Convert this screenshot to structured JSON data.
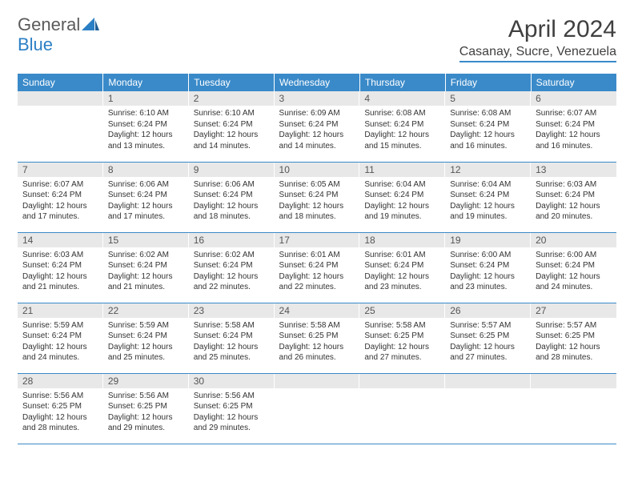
{
  "logo": {
    "word1": "General",
    "word2": "Blue"
  },
  "title": "April 2024",
  "location": "Casanay, Sucre, Venezuela",
  "colors": {
    "header_bg": "#3a8ac9",
    "header_text": "#ffffff",
    "daynum_bg": "#e8e8e8",
    "body_text": "#333333",
    "rule": "#3a8ac9"
  },
  "weekdays": [
    "Sunday",
    "Monday",
    "Tuesday",
    "Wednesday",
    "Thursday",
    "Friday",
    "Saturday"
  ],
  "start_offset": 1,
  "days": [
    {
      "n": 1,
      "sr": "6:10 AM",
      "ss": "6:24 PM",
      "dl": "12 hours and 13 minutes."
    },
    {
      "n": 2,
      "sr": "6:10 AM",
      "ss": "6:24 PM",
      "dl": "12 hours and 14 minutes."
    },
    {
      "n": 3,
      "sr": "6:09 AM",
      "ss": "6:24 PM",
      "dl": "12 hours and 14 minutes."
    },
    {
      "n": 4,
      "sr": "6:08 AM",
      "ss": "6:24 PM",
      "dl": "12 hours and 15 minutes."
    },
    {
      "n": 5,
      "sr": "6:08 AM",
      "ss": "6:24 PM",
      "dl": "12 hours and 16 minutes."
    },
    {
      "n": 6,
      "sr": "6:07 AM",
      "ss": "6:24 PM",
      "dl": "12 hours and 16 minutes."
    },
    {
      "n": 7,
      "sr": "6:07 AM",
      "ss": "6:24 PM",
      "dl": "12 hours and 17 minutes."
    },
    {
      "n": 8,
      "sr": "6:06 AM",
      "ss": "6:24 PM",
      "dl": "12 hours and 17 minutes."
    },
    {
      "n": 9,
      "sr": "6:06 AM",
      "ss": "6:24 PM",
      "dl": "12 hours and 18 minutes."
    },
    {
      "n": 10,
      "sr": "6:05 AM",
      "ss": "6:24 PM",
      "dl": "12 hours and 18 minutes."
    },
    {
      "n": 11,
      "sr": "6:04 AM",
      "ss": "6:24 PM",
      "dl": "12 hours and 19 minutes."
    },
    {
      "n": 12,
      "sr": "6:04 AM",
      "ss": "6:24 PM",
      "dl": "12 hours and 19 minutes."
    },
    {
      "n": 13,
      "sr": "6:03 AM",
      "ss": "6:24 PM",
      "dl": "12 hours and 20 minutes."
    },
    {
      "n": 14,
      "sr": "6:03 AM",
      "ss": "6:24 PM",
      "dl": "12 hours and 21 minutes."
    },
    {
      "n": 15,
      "sr": "6:02 AM",
      "ss": "6:24 PM",
      "dl": "12 hours and 21 minutes."
    },
    {
      "n": 16,
      "sr": "6:02 AM",
      "ss": "6:24 PM",
      "dl": "12 hours and 22 minutes."
    },
    {
      "n": 17,
      "sr": "6:01 AM",
      "ss": "6:24 PM",
      "dl": "12 hours and 22 minutes."
    },
    {
      "n": 18,
      "sr": "6:01 AM",
      "ss": "6:24 PM",
      "dl": "12 hours and 23 minutes."
    },
    {
      "n": 19,
      "sr": "6:00 AM",
      "ss": "6:24 PM",
      "dl": "12 hours and 23 minutes."
    },
    {
      "n": 20,
      "sr": "6:00 AM",
      "ss": "6:24 PM",
      "dl": "12 hours and 24 minutes."
    },
    {
      "n": 21,
      "sr": "5:59 AM",
      "ss": "6:24 PM",
      "dl": "12 hours and 24 minutes."
    },
    {
      "n": 22,
      "sr": "5:59 AM",
      "ss": "6:24 PM",
      "dl": "12 hours and 25 minutes."
    },
    {
      "n": 23,
      "sr": "5:58 AM",
      "ss": "6:24 PM",
      "dl": "12 hours and 25 minutes."
    },
    {
      "n": 24,
      "sr": "5:58 AM",
      "ss": "6:25 PM",
      "dl": "12 hours and 26 minutes."
    },
    {
      "n": 25,
      "sr": "5:58 AM",
      "ss": "6:25 PM",
      "dl": "12 hours and 27 minutes."
    },
    {
      "n": 26,
      "sr": "5:57 AM",
      "ss": "6:25 PM",
      "dl": "12 hours and 27 minutes."
    },
    {
      "n": 27,
      "sr": "5:57 AM",
      "ss": "6:25 PM",
      "dl": "12 hours and 28 minutes."
    },
    {
      "n": 28,
      "sr": "5:56 AM",
      "ss": "6:25 PM",
      "dl": "12 hours and 28 minutes."
    },
    {
      "n": 29,
      "sr": "5:56 AM",
      "ss": "6:25 PM",
      "dl": "12 hours and 29 minutes."
    },
    {
      "n": 30,
      "sr": "5:56 AM",
      "ss": "6:25 PM",
      "dl": "12 hours and 29 minutes."
    }
  ],
  "labels": {
    "sunrise": "Sunrise: ",
    "sunset": "Sunset: ",
    "daylight": "Daylight: "
  }
}
